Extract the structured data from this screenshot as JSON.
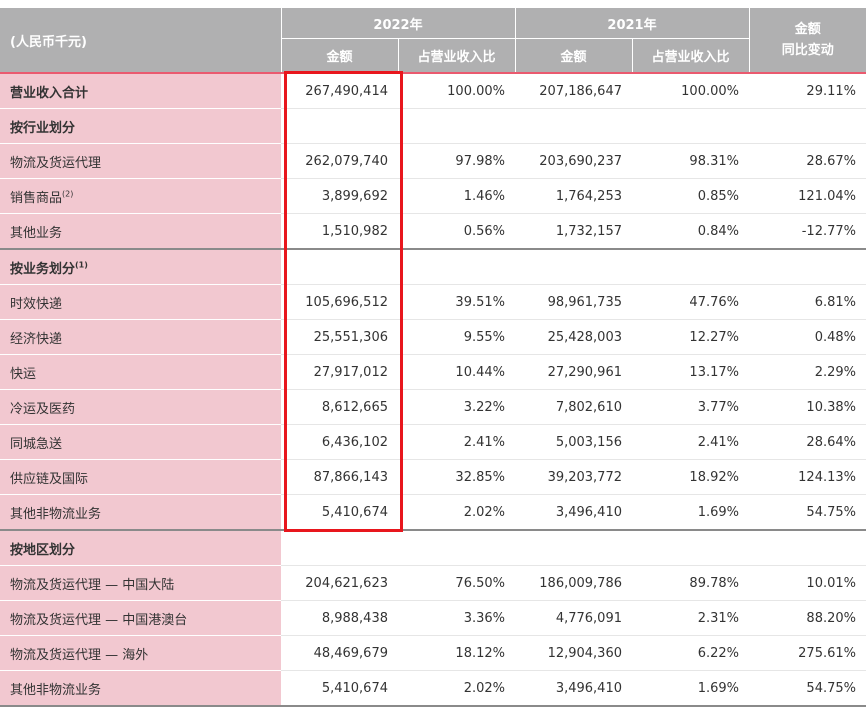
{
  "header": {
    "unit": "(人民币千元)",
    "year_2022": "2022年",
    "year_2021": "2021年",
    "amount": "金额",
    "ratio": "占营业收入比",
    "change_line1": "金额",
    "change_line2": "同比变动"
  },
  "total": {
    "label": "营业收入合计",
    "amt_2022": "267,490,414",
    "pct_2022": "100.00%",
    "amt_2021": "207,186,647",
    "pct_2021": "100.00%",
    "change": "29.11%"
  },
  "sections": [
    {
      "title": "按行业划分",
      "note": "",
      "rows": [
        {
          "label": "物流及货运代理",
          "note": "",
          "amt_2022": "262,079,740",
          "pct_2022": "97.98%",
          "amt_2021": "203,690,237",
          "pct_2021": "98.31%",
          "change": "28.67%"
        },
        {
          "label": "销售商品",
          "note": "(2)",
          "amt_2022": "3,899,692",
          "pct_2022": "1.46%",
          "amt_2021": "1,764,253",
          "pct_2021": "0.85%",
          "change": "121.04%"
        },
        {
          "label": "其他业务",
          "note": "",
          "amt_2022": "1,510,982",
          "pct_2022": "0.56%",
          "amt_2021": "1,732,157",
          "pct_2021": "0.84%",
          "change": "-12.77%"
        }
      ]
    },
    {
      "title": "按业务划分",
      "note": "(1)",
      "rows": [
        {
          "label": "时效快递",
          "note": "",
          "amt_2022": "105,696,512",
          "pct_2022": "39.51%",
          "amt_2021": "98,961,735",
          "pct_2021": "47.76%",
          "change": "6.81%"
        },
        {
          "label": "经济快递",
          "note": "",
          "amt_2022": "25,551,306",
          "pct_2022": "9.55%",
          "amt_2021": "25,428,003",
          "pct_2021": "12.27%",
          "change": "0.48%"
        },
        {
          "label": "快运",
          "note": "",
          "amt_2022": "27,917,012",
          "pct_2022": "10.44%",
          "amt_2021": "27,290,961",
          "pct_2021": "13.17%",
          "change": "2.29%"
        },
        {
          "label": "冷运及医药",
          "note": "",
          "amt_2022": "8,612,665",
          "pct_2022": "3.22%",
          "amt_2021": "7,802,610",
          "pct_2021": "3.77%",
          "change": "10.38%"
        },
        {
          "label": "同城急送",
          "note": "",
          "amt_2022": "6,436,102",
          "pct_2022": "2.41%",
          "amt_2021": "5,003,156",
          "pct_2021": "2.41%",
          "change": "28.64%"
        },
        {
          "label": "供应链及国际",
          "note": "",
          "amt_2022": "87,866,143",
          "pct_2022": "32.85%",
          "amt_2021": "39,203,772",
          "pct_2021": "18.92%",
          "change": "124.13%"
        },
        {
          "label": "其他非物流业务",
          "note": "",
          "amt_2022": "5,410,674",
          "pct_2022": "2.02%",
          "amt_2021": "3,496,410",
          "pct_2021": "1.69%",
          "change": "54.75%"
        }
      ]
    },
    {
      "title": "按地区划分",
      "note": "",
      "rows": [
        {
          "label": "物流及货运代理 — 中国大陆",
          "note": "",
          "amt_2022": "204,621,623",
          "pct_2022": "76.50%",
          "amt_2021": "186,009,786",
          "pct_2021": "89.78%",
          "change": "10.01%"
        },
        {
          "label": "物流及货运代理 — 中国港澳台",
          "note": "",
          "amt_2022": "8,988,438",
          "pct_2022": "3.36%",
          "amt_2021": "4,776,091",
          "pct_2021": "2.31%",
          "change": "88.20%"
        },
        {
          "label": "物流及货运代理 — 海外",
          "note": "",
          "amt_2022": "48,469,679",
          "pct_2022": "18.12%",
          "amt_2021": "12,904,360",
          "pct_2021": "6.22%",
          "change": "275.61%"
        },
        {
          "label": "其他非物流业务",
          "note": "",
          "amt_2022": "5,410,674",
          "pct_2022": "2.02%",
          "amt_2021": "3,496,410",
          "pct_2021": "1.69%",
          "change": "54.75%"
        }
      ]
    }
  ],
  "colors": {
    "header_bg": "#b0b0b1",
    "label_bg": "#f2c8d0",
    "total_rule": "#ea5a6f",
    "highlight_box": "#e8161d"
  }
}
